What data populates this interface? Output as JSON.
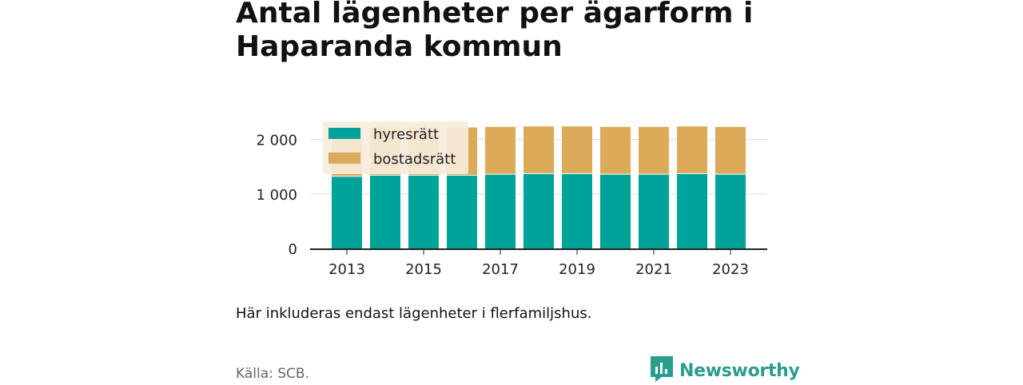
{
  "page": {
    "title": "Antal lägenheter per ägarform i Haparanda kommun",
    "note": "Här inkluderas endast lägenheter i flerfamiljshus.",
    "source": "Källa: SCB.",
    "brand": "Newsworthy",
    "brand_icon": "bar-chart-speech-bubble-icon"
  },
  "colors": {
    "hyresratt": "#00a397",
    "bostadsratt": "#dbab59",
    "legend_bg": "#f7ecdd",
    "brand": "#2a9d8f"
  },
  "chart_data": {
    "type": "bar",
    "stacked": true,
    "title": "Antal lägenheter per ägarform i Haparanda kommun",
    "categories": [
      "2013",
      "2014",
      "2015",
      "2016",
      "2017",
      "2018",
      "2019",
      "2020",
      "2021",
      "2022",
      "2023"
    ],
    "series": [
      {
        "name": "hyresrätt",
        "values": [
          1330,
          1350,
          1350,
          1350,
          1370,
          1380,
          1380,
          1370,
          1370,
          1380,
          1370
        ]
      },
      {
        "name": "bostadsrätt",
        "values": [
          870,
          870,
          870,
          870,
          860,
          860,
          860,
          860,
          860,
          860,
          860
        ]
      }
    ],
    "xticks": [
      "2013",
      "2015",
      "2017",
      "2019",
      "2021",
      "2023"
    ],
    "yticks": [
      0,
      1000,
      2000
    ],
    "ytick_labels": [
      "0",
      "1 000",
      "2 000"
    ],
    "ylim": [
      0,
      2200
    ],
    "xlabel": "",
    "ylabel": "",
    "grid": true,
    "legend": "top-left"
  }
}
